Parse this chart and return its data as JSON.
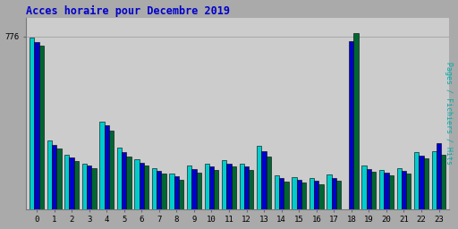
{
  "title": "Acces horaire pour Decembre 2019",
  "ylabel": "Pages / Fichiers / Hits",
  "hours": [
    0,
    1,
    2,
    3,
    4,
    5,
    6,
    7,
    8,
    9,
    10,
    11,
    12,
    13,
    14,
    15,
    16,
    17,
    18,
    19,
    20,
    21,
    22,
    23
  ],
  "hits": [
    770,
    310,
    245,
    205,
    395,
    275,
    225,
    185,
    160,
    195,
    205,
    220,
    205,
    285,
    150,
    145,
    138,
    155,
    0,
    195,
    178,
    185,
    255,
    262
  ],
  "fichiers": [
    750,
    290,
    232,
    198,
    375,
    258,
    210,
    172,
    147,
    180,
    192,
    206,
    192,
    262,
    138,
    132,
    126,
    140,
    755,
    182,
    165,
    172,
    242,
    298
  ],
  "pages": [
    735,
    272,
    218,
    183,
    353,
    238,
    196,
    158,
    133,
    166,
    178,
    192,
    178,
    238,
    123,
    118,
    113,
    126,
    790,
    168,
    150,
    158,
    228,
    245
  ],
  "hits_color": "#00cccc",
  "fichiers_color": "#0000cc",
  "pages_color": "#006633",
  "bg_color": "#aaaaaa",
  "plot_bg_color": "#cccccc",
  "title_color": "#0000cc",
  "ylabel_color": "#00aaaa",
  "ylim": [
    0,
    860
  ],
  "ytick_positions": [
    776
  ],
  "ytick_labels": [
    "776"
  ]
}
